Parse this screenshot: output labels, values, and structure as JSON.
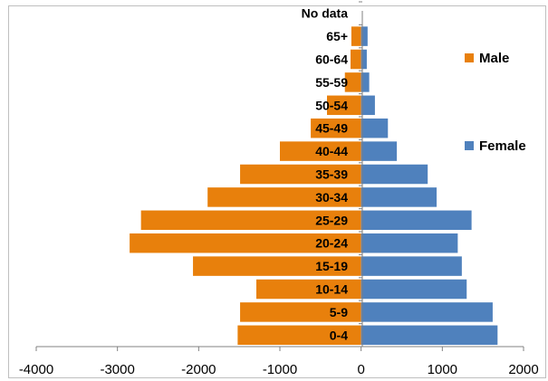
{
  "colors": {
    "male": "#e8800c",
    "female": "#4f81bd",
    "axis": "#808080",
    "frame": "#bfbfbf",
    "label": "#000000"
  },
  "chart_data": {
    "type": "bar",
    "orientation": "horizontal",
    "stacked": true,
    "categories": [
      "0-4",
      "5-9",
      "10-14",
      "15-19",
      "20-24",
      "25-29",
      "30-34",
      "35-39",
      "40-44",
      "45-49",
      "50-54",
      "55-59",
      "60-64",
      "65+",
      "No data"
    ],
    "series": [
      {
        "name": "Male",
        "values": [
          -1520,
          -1490,
          -1290,
          -2070,
          -2850,
          -2710,
          -1890,
          -1490,
          -1000,
          -620,
          -420,
          -200,
          -130,
          -120,
          0
        ]
      },
      {
        "name": "Female",
        "values": [
          1680,
          1620,
          1300,
          1240,
          1190,
          1360,
          930,
          820,
          440,
          330,
          170,
          100,
          70,
          80,
          0
        ]
      }
    ],
    "xlim": [
      -4000,
      2000
    ],
    "xticks": [
      -4000,
      -3000,
      -2000,
      -1000,
      0,
      1000,
      2000
    ],
    "xlabel": "",
    "ylabel": "",
    "title": "",
    "grid": false,
    "legend_position": "right"
  }
}
